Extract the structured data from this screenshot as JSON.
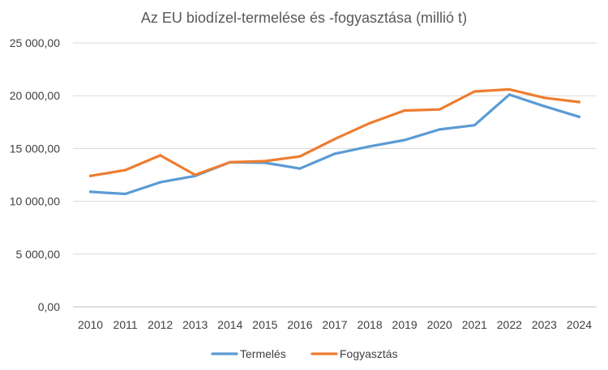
{
  "chart_data": {
    "type": "line",
    "title": "Az EU biodízel-termelése és -fogyasztása (millió t)",
    "xlabel": "",
    "ylabel": "",
    "categories": [
      "2010",
      "2011",
      "2012",
      "2013",
      "2014",
      "2015",
      "2016",
      "2017",
      "2018",
      "2019",
      "2020",
      "2021",
      "2022",
      "2023",
      "2024"
    ],
    "ylim": [
      0,
      25000
    ],
    "y_ticks": [
      0,
      5000,
      10000,
      15000,
      20000,
      25000
    ],
    "y_tick_labels": [
      "0,00",
      "5 000,00",
      "10 000,00",
      "15 000,00",
      "20 000,00",
      "25 000,00"
    ],
    "grid": true,
    "legend_position": "bottom",
    "series": [
      {
        "name": "Termelés",
        "color": "#5b9bd5",
        "values": [
          10900,
          10700,
          11800,
          12400,
          13700,
          13650,
          13100,
          14500,
          15200,
          15800,
          16800,
          17200,
          20100,
          19000,
          18000
        ]
      },
      {
        "name": "Fogyasztás",
        "color": "#ed7d31",
        "values": [
          12400,
          12950,
          14350,
          12500,
          13700,
          13800,
          14250,
          15900,
          17400,
          18600,
          18700,
          20400,
          20600,
          19800,
          19400
        ]
      }
    ]
  }
}
